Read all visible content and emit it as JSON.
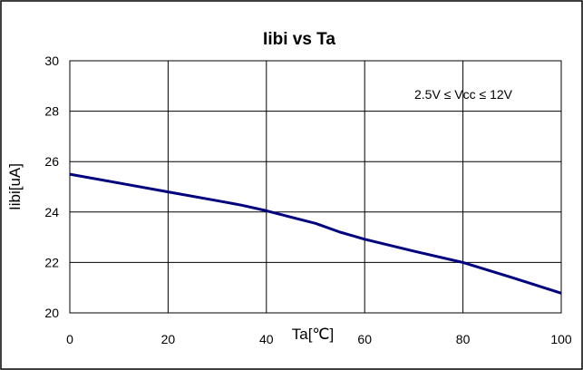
{
  "chart_data": {
    "type": "line",
    "title": "Iibi vs Ta",
    "xlabel": "Ta[℃]",
    "ylabel": "Iibi[uA]",
    "xlim": [
      0,
      100
    ],
    "ylim": [
      20,
      30
    ],
    "x_ticks": [
      "0",
      "20",
      "40",
      "60",
      "80",
      "100"
    ],
    "y_ticks": [
      "20",
      "22",
      "24",
      "26",
      "28",
      "30"
    ],
    "grid": true,
    "annotation": "2.5V ≤ Vcc ≤ 12V",
    "colors": {
      "series": "#00007f",
      "grid": "#000000",
      "frame": "#000000"
    },
    "series": [
      {
        "x": [
          0,
          10,
          20,
          30,
          35,
          40,
          45,
          50,
          55,
          60,
          70,
          80,
          90,
          100
        ],
        "values": [
          25.5,
          25.15,
          24.8,
          24.45,
          24.27,
          24.05,
          23.8,
          23.55,
          23.2,
          22.92,
          22.45,
          22.0,
          21.4,
          20.78
        ]
      }
    ]
  }
}
